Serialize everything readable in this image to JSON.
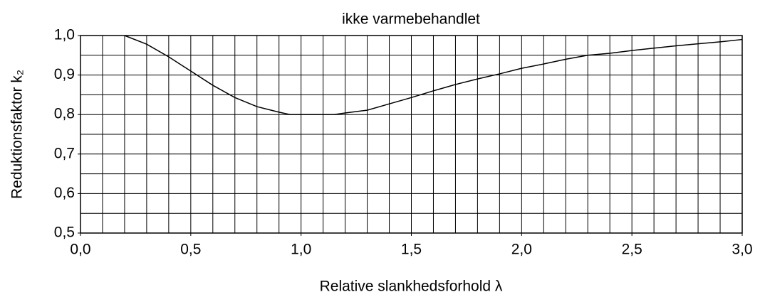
{
  "chart_data": {
    "type": "line",
    "title": "ikke varmebehandlet",
    "xlabel": "Relative slankhedsforhold  λ",
    "ylabel": "Reduktionsfaktor k₂",
    "x": [
      0.2,
      0.3,
      0.4,
      0.5,
      0.6,
      0.7,
      0.8,
      0.9,
      0.95,
      1.0,
      1.1,
      1.15,
      1.2,
      1.3,
      1.4,
      1.5,
      1.6,
      1.7,
      1.8,
      1.9,
      2.0,
      2.1,
      2.2,
      2.3,
      2.4,
      2.5,
      2.6,
      2.7,
      2.8,
      2.9,
      3.0
    ],
    "series": [
      {
        "name": "k2",
        "color": "#000000",
        "values": [
          1.0,
          0.978,
          0.946,
          0.91,
          0.874,
          0.843,
          0.82,
          0.806,
          0.8,
          0.8,
          0.8,
          0.8,
          0.804,
          0.811,
          0.827,
          0.843,
          0.86,
          0.876,
          0.89,
          0.903,
          0.917,
          0.928,
          0.94,
          0.95,
          0.955,
          0.962,
          0.968,
          0.974,
          0.979,
          0.984,
          0.99
        ]
      }
    ],
    "xlim": [
      0,
      3
    ],
    "ylim": [
      0.5,
      1.0
    ],
    "xticks": [
      {
        "value": 0,
        "label": "0,0"
      },
      {
        "value": 0.5,
        "label": "0,5"
      },
      {
        "value": 1.0,
        "label": "1,0"
      },
      {
        "value": 1.5,
        "label": "1,5"
      },
      {
        "value": 2.0,
        "label": "2,0"
      },
      {
        "value": 2.5,
        "label": "2,5"
      },
      {
        "value": 3.0,
        "label": "3,0"
      }
    ],
    "yticks": [
      {
        "value": 0.5,
        "label": "0,5"
      },
      {
        "value": 0.6,
        "label": "0,6"
      },
      {
        "value": 0.7,
        "label": "0,7"
      },
      {
        "value": 0.8,
        "label": "0,8"
      },
      {
        "value": 0.9,
        "label": "0,9"
      },
      {
        "value": 1.0,
        "label": "1,0"
      }
    ],
    "xgrid": [
      0,
      0.1,
      0.2,
      0.3,
      0.4,
      0.5,
      0.6,
      0.7,
      0.8,
      0.9,
      1.0,
      1.1,
      1.2,
      1.3,
      1.4,
      1.5,
      1.6,
      1.7,
      1.8,
      1.9,
      2.0,
      2.1,
      2.2,
      2.3,
      2.4,
      2.5,
      2.6,
      2.7,
      2.8,
      2.9,
      3.0
    ],
    "ygrid": [
      0.5,
      0.55,
      0.6,
      0.65,
      0.7,
      0.75,
      0.8,
      0.85,
      0.9,
      0.95,
      1.0
    ],
    "grid": true
  }
}
